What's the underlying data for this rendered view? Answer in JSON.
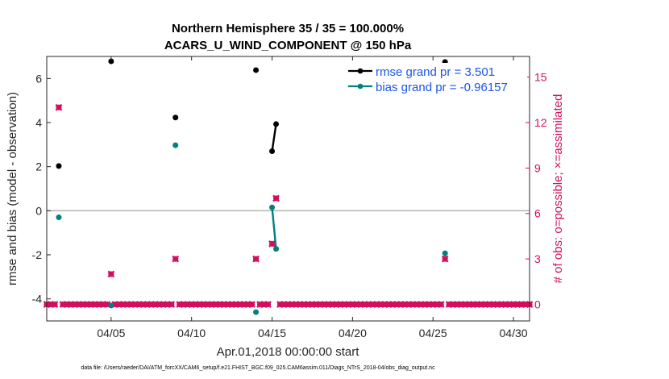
{
  "chart_data": {
    "type": "line",
    "title": [
      "Northern Hemisphere 35 / 35 = 100.000%",
      "ACARS_U_WIND_COMPONENT @ 150 hPa"
    ],
    "xlabel": "Apr.01,2018 00:00:00 start",
    "ylabel": "rmse and bias (model - observation)",
    "ylabel_right": "# of obs: o=possible; ×=assimilated",
    "x_ticks": [
      "04/05",
      "04/10",
      "04/15",
      "04/20",
      "04/25",
      "04/30"
    ],
    "y_ticks": [
      "-4",
      "-2",
      "0",
      "2",
      "4",
      "6"
    ],
    "y_ticks_right": [
      "0",
      "3",
      "6",
      "9",
      "12",
      "15"
    ],
    "xlim": [
      1.0,
      31.0
    ],
    "ylim": [
      -5,
      7
    ],
    "ylim_right": [
      -1.0909,
      16.3636
    ],
    "x_unit": "day of April 2018",
    "zero_line": true,
    "grid": false,
    "legend_placement": "top-right",
    "legend": [
      {
        "name": "rmse grand pr = 3.501",
        "color": "#000000"
      },
      {
        "name": "bias grand pr = -0.96157",
        "color": "#008080"
      }
    ],
    "series": [
      {
        "name": "rmse",
        "color": "#000000",
        "points": [
          [
            1.75,
            2.03
          ],
          [
            5.0,
            6.78
          ],
          [
            9.0,
            4.23
          ],
          [
            14.0,
            6.38
          ],
          [
            15.0,
            2.7
          ],
          [
            15.25,
            3.93
          ],
          [
            25.75,
            6.75
          ]
        ],
        "segments": [
          [
            [
              15.0,
              2.7
            ],
            [
              15.25,
              3.93
            ]
          ]
        ]
      },
      {
        "name": "bias",
        "color": "#008080",
        "points": [
          [
            1.75,
            -0.3
          ],
          [
            5.0,
            -4.3
          ],
          [
            9.0,
            2.97
          ],
          [
            14.0,
            -4.6
          ],
          [
            15.0,
            0.15
          ],
          [
            15.25,
            -1.73
          ],
          [
            25.75,
            -1.93
          ]
        ],
        "segments": [
          [
            [
              15.0,
              0.15
            ],
            [
              15.25,
              -1.73
            ]
          ]
        ]
      },
      {
        "name": "# of obs",
        "axis": "right",
        "color": "#d0105e",
        "markers": "possible and assimilated overlap",
        "x_start": 0.25,
        "x_step": 0.25,
        "count": 124,
        "default_value": 0,
        "nonzero": [
          [
            1.75,
            13
          ],
          [
            5.0,
            2
          ],
          [
            9.0,
            3
          ],
          [
            14.0,
            3
          ],
          [
            15.0,
            4
          ],
          [
            15.25,
            7
          ],
          [
            25.75,
            3
          ]
        ]
      }
    ]
  },
  "footnote": "data file: /Users/raeder/DAI/ATM_forcXX/CAM6_setup/f.e21.FHIST_BGC.f09_025.CAM6assim.011/Diags_NTrS_2018-04/obs_diag_output.nc"
}
